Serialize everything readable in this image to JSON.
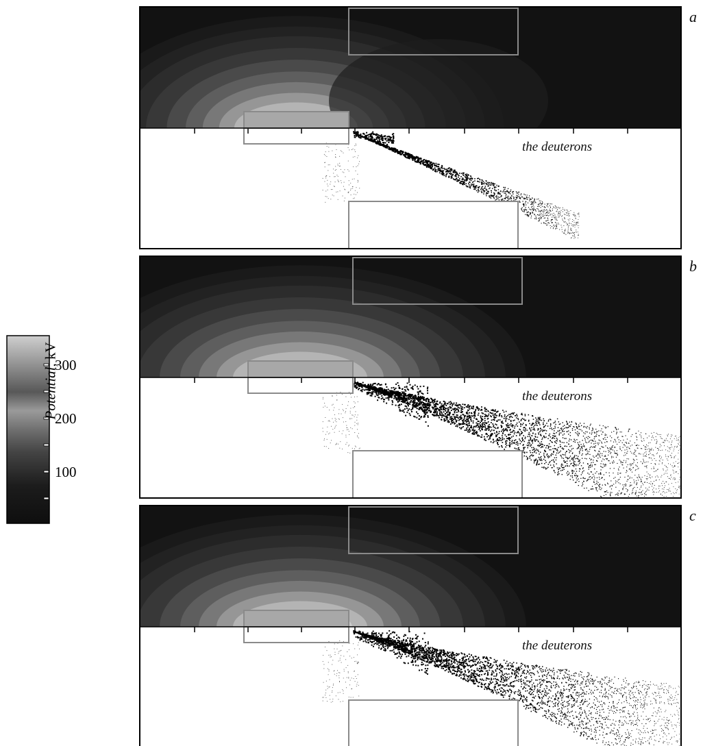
{
  "colors": {
    "field_dark": "#121212",
    "electrode_outline": "#8a8a8a",
    "inner_electrode_fill": "#a8a8a8",
    "particle": "#000000",
    "frame": "#000000"
  },
  "colorbar": {
    "title_italic": "Potential,",
    "title_unit": " kV",
    "tick_labels": [
      "300",
      "200",
      "100"
    ],
    "gradient_stops": [
      "#111111",
      "#222222",
      "#555555",
      "#777777",
      "#555555",
      "#888888",
      "#aaaaaa",
      "#cccccc"
    ]
  },
  "panels": [
    {
      "letter": "a",
      "label": "the deuterons",
      "beam_spread": 0.55,
      "particle_density": 0.35
    },
    {
      "letter": "b",
      "label": "the deuterons",
      "beam_spread": 1.0,
      "particle_density": 1.0
    },
    {
      "letter": "c",
      "label": "the deuterons",
      "beam_spread": 1.0,
      "particle_density": 1.0
    }
  ]
}
